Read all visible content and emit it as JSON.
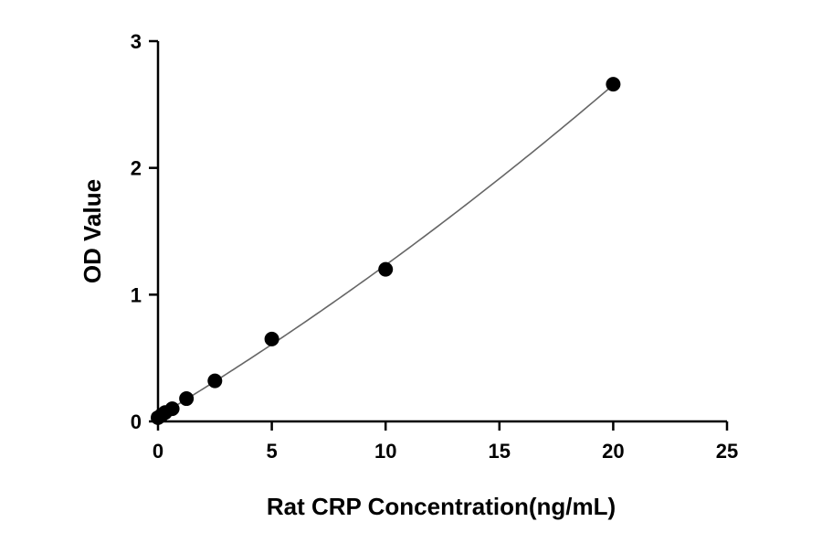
{
  "chart_data": {
    "type": "scatter",
    "title": "",
    "xlabel": "Rat CRP Concentration(ng/mL)",
    "ylabel": "OD Value",
    "xlim": [
      0,
      25
    ],
    "ylim": [
      0,
      3
    ],
    "x_ticks": [
      "0",
      "5",
      "10",
      "15",
      "20",
      "25"
    ],
    "y_ticks": [
      "0",
      "1",
      "2",
      "3"
    ],
    "grid": false,
    "legend": "none",
    "series": [
      {
        "x": [
          0,
          0.156,
          0.313,
          0.625,
          1.25,
          2.5,
          5,
          10,
          20
        ],
        "y": [
          0.03,
          0.05,
          0.07,
          0.1,
          0.18,
          0.32,
          0.65,
          1.2,
          2.66
        ]
      }
    ],
    "fit_curve": true,
    "colors": {
      "points": "#000000",
      "fit": "#666666",
      "axes": "#000000"
    }
  }
}
